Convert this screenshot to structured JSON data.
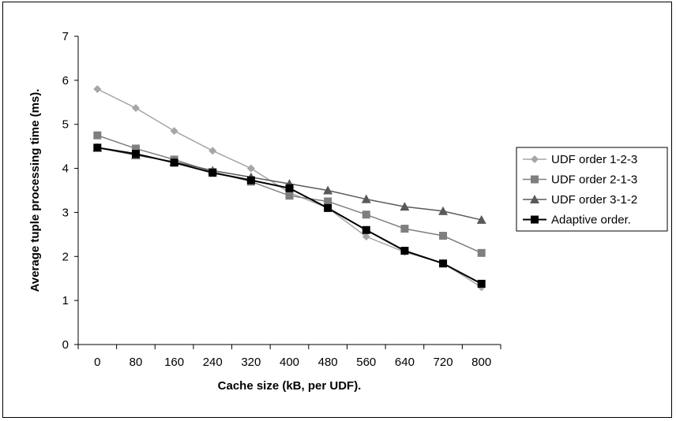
{
  "chart_data": {
    "type": "line",
    "title": "",
    "xlabel": "Cache size (kB, per UDF).",
    "ylabel": "Average tuple processing time (ms).",
    "x": [
      0,
      80,
      160,
      240,
      320,
      400,
      480,
      560,
      640,
      720,
      800
    ],
    "xticks": [
      "0",
      "80",
      "160",
      "240",
      "320",
      "400",
      "480",
      "560",
      "640",
      "720",
      "800"
    ],
    "yticks": [
      "0",
      "1",
      "2",
      "3",
      "4",
      "5",
      "6",
      "7"
    ],
    "ylim": [
      0,
      7
    ],
    "grid": false,
    "legend_position": "right",
    "series": [
      {
        "name": "UDF order 1-2-3",
        "color": "#a6a6a6",
        "marker": "diamond",
        "values": [
          5.8,
          5.37,
          4.85,
          4.4,
          4.0,
          3.45,
          3.1,
          2.45,
          2.1,
          1.85,
          1.3
        ]
      },
      {
        "name": "UDF order 2-1-3",
        "color": "#7f7f7f",
        "marker": "square",
        "values": [
          4.75,
          4.45,
          4.2,
          3.92,
          3.7,
          3.38,
          3.25,
          2.95,
          2.63,
          2.47,
          2.08
        ]
      },
      {
        "name": "UDF order 3-1-2",
        "color": "#595959",
        "marker": "triangle",
        "values": [
          4.47,
          4.3,
          4.15,
          3.95,
          3.8,
          3.65,
          3.5,
          3.3,
          3.13,
          3.03,
          2.83
        ]
      },
      {
        "name": "Adaptive order.",
        "color": "#000000",
        "marker": "square",
        "values": [
          4.47,
          4.33,
          4.13,
          3.9,
          3.73,
          3.55,
          3.1,
          2.6,
          2.13,
          1.84,
          1.38
        ]
      }
    ]
  }
}
